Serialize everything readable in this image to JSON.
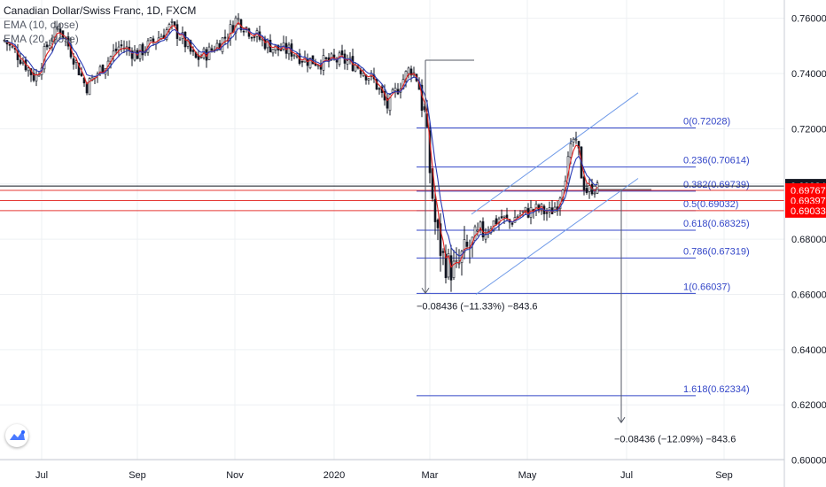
{
  "header": {
    "title": "Canadian Dollar/Swiss Franc, 1D, FXCM",
    "ema_fast": "EMA (10, close)",
    "ema_slow": "EMA (20, close)"
  },
  "colors": {
    "candle": "#131722",
    "ema_fast": "#e02020",
    "ema_slow": "#2a3bb5",
    "fib": "#3346c8",
    "channel": "#6f9ae8",
    "horizontal_red": "#e53935",
    "horizontal_black": "#131722",
    "measure": "#555a66",
    "grid": "#eef0f3",
    "price_badge_dark": "#131722",
    "price_badge_red": "#ff0000"
  },
  "chart_data": {
    "type": "candlestick",
    "x_axis": {
      "ticks": [
        "Jul",
        "Sep",
        "Nov",
        "2020",
        "Mar",
        "May",
        "Jul",
        "Sep"
      ],
      "tick_days": [
        42,
        150,
        260,
        372,
        480,
        590,
        702,
        812
      ]
    },
    "y_axis": {
      "range": [
        0.595,
        0.765
      ],
      "ticks": [
        "0.76000",
        "0.74000",
        "0.72000",
        "0.70000",
        "0.68000",
        "0.66000",
        "0.64000",
        "0.62000",
        "0.60000"
      ],
      "tick_values": [
        0.76,
        0.74,
        0.72,
        0.7,
        0.68,
        0.66,
        0.64,
        0.62,
        0.6
      ]
    },
    "price_anchors": [
      [
        0,
        0.752
      ],
      [
        20,
        0.745
      ],
      [
        35,
        0.738
      ],
      [
        48,
        0.75
      ],
      [
        62,
        0.757
      ],
      [
        78,
        0.746
      ],
      [
        92,
        0.735
      ],
      [
        110,
        0.742
      ],
      [
        130,
        0.75
      ],
      [
        150,
        0.747
      ],
      [
        170,
        0.752
      ],
      [
        188,
        0.757
      ],
      [
        200,
        0.753
      ],
      [
        215,
        0.745
      ],
      [
        232,
        0.748
      ],
      [
        252,
        0.754
      ],
      [
        262,
        0.76
      ],
      [
        275,
        0.756
      ],
      [
        290,
        0.752
      ],
      [
        305,
        0.749
      ],
      [
        325,
        0.748
      ],
      [
        340,
        0.745
      ],
      [
        360,
        0.744
      ],
      [
        380,
        0.745
      ],
      [
        398,
        0.743
      ],
      [
        418,
        0.737
      ],
      [
        432,
        0.728
      ],
      [
        446,
        0.736
      ],
      [
        458,
        0.742
      ],
      [
        466,
        0.738
      ],
      [
        474,
        0.725
      ],
      [
        480,
        0.705
      ],
      [
        487,
        0.683
      ],
      [
        495,
        0.673
      ],
      [
        502,
        0.67
      ],
      [
        510,
        0.668
      ],
      [
        517,
        0.674
      ],
      [
        525,
        0.677
      ],
      [
        535,
        0.68
      ],
      [
        548,
        0.685
      ],
      [
        560,
        0.688
      ],
      [
        570,
        0.686
      ],
      [
        580,
        0.689
      ],
      [
        592,
        0.69
      ],
      [
        604,
        0.691
      ],
      [
        614,
        0.689
      ],
      [
        624,
        0.693
      ],
      [
        634,
        0.705
      ],
      [
        642,
        0.716
      ],
      [
        648,
        0.711
      ],
      [
        652,
        0.701
      ],
      [
        658,
        0.697
      ],
      [
        664,
        0.699
      ],
      [
        670,
        0.698
      ]
    ],
    "ema_labels": [
      "EMA (10, close)",
      "EMA (20, close)"
    ],
    "fibonacci": {
      "day_start": 465,
      "day_end": 700,
      "levels": [
        {
          "label": "0(0.72028)",
          "value": 0.72028
        },
        {
          "label": "0.236(0.70614)",
          "value": 0.70614
        },
        {
          "label": "0.382(0.69739)",
          "value": 0.69739
        },
        {
          "label": "0.5(0.69032)",
          "value": 0.69032
        },
        {
          "label": "0.618(0.68325)",
          "value": 0.68325
        },
        {
          "label": "0.786(0.67319)",
          "value": 0.67319
        },
        {
          "label": "1(0.66037)",
          "value": 0.66037
        },
        {
          "label": "1.618(0.62334)",
          "value": 0.62334
        }
      ]
    },
    "channel": [
      {
        "from": [
          527,
          0.689
        ],
        "to": [
          715,
          0.733
        ]
      },
      {
        "from": [
          532,
          0.66
        ],
        "to": [
          715,
          0.702
        ]
      }
    ],
    "horizontal_lines": [
      {
        "value": 0.69924,
        "color": "black"
      },
      {
        "value": 0.69767,
        "color": "red"
      },
      {
        "value": 0.69397,
        "color": "red"
      },
      {
        "value": 0.69033,
        "color": "red"
      }
    ],
    "price_labels": [
      {
        "text": "0.69924",
        "value": 0.69924,
        "style": "dark"
      },
      {
        "text": "0.69767",
        "value": 0.69767,
        "style": "red"
      },
      {
        "text": "0.69397",
        "value": 0.69397,
        "style": "red"
      },
      {
        "text": "0.69033",
        "value": 0.69033,
        "style": "red"
      }
    ],
    "measures": [
      {
        "day": 475,
        "from": 0.7448,
        "to": 0.6604,
        "cap_from": [
          475,
          530
        ],
        "text": "−0.08436 (−11.33%) −843.6",
        "text_day": 465,
        "text_value": 0.6545
      },
      {
        "day": 696,
        "from": 0.698,
        "to": 0.6136,
        "cap_from": [
          662,
          730
        ],
        "text": "−0.08436 (−12.09%) −843.6",
        "text_day": 688,
        "text_value": 0.6065
      }
    ]
  }
}
